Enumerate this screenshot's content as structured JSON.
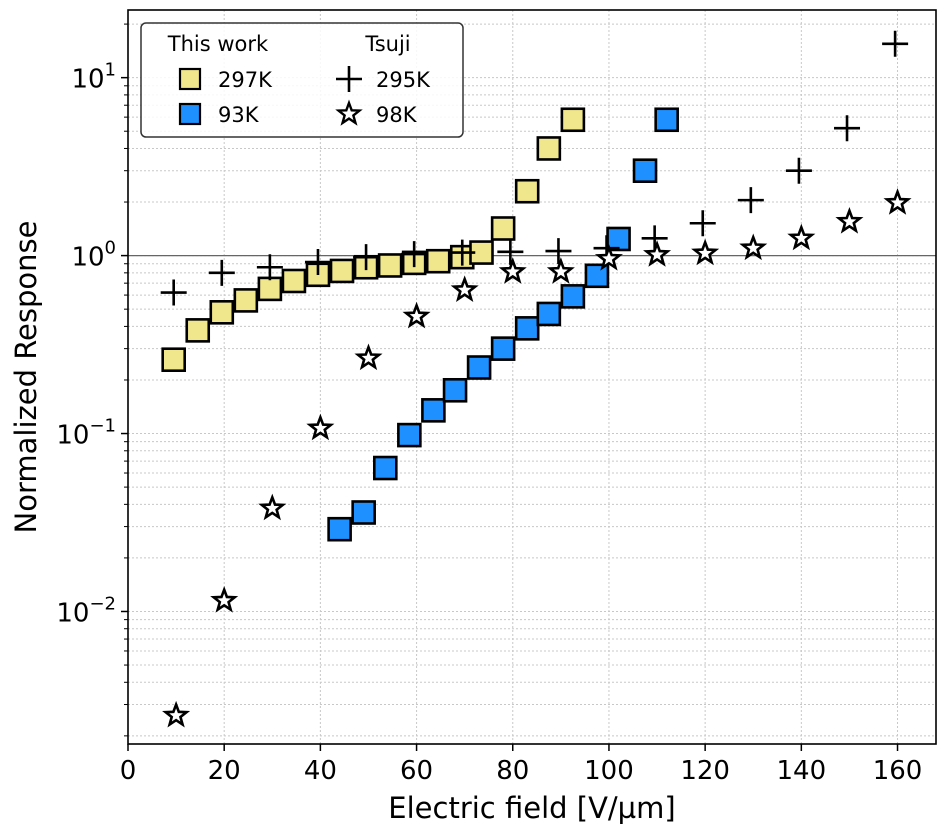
{
  "chart_data": {
    "type": "scatter",
    "xlabel": "Electric field [V/µm]",
    "ylabel": "Normalized Response",
    "xscale": "linear",
    "yscale": "log",
    "xlim": [
      0,
      168
    ],
    "ylim": [
      0.0018,
      24
    ],
    "xticks": [
      0,
      20,
      40,
      60,
      80,
      100,
      120,
      140,
      160
    ],
    "yticks": [
      {
        "value": 0.01,
        "base": "10",
        "exp": "−2"
      },
      {
        "value": 0.1,
        "base": "10",
        "exp": "−1"
      },
      {
        "value": 1,
        "base": "10",
        "exp": "0"
      },
      {
        "value": 10,
        "base": "10",
        "exp": "1"
      }
    ],
    "grid": true,
    "reference_line": 1,
    "legend": {
      "placement": "top-left",
      "groups": [
        {
          "title": "This work",
          "entries": [
            "297K",
            "93K"
          ]
        },
        {
          "title": "Tsuji",
          "entries": [
            "295K",
            "98K"
          ]
        }
      ]
    },
    "series": [
      {
        "name": "297K",
        "group": "This work",
        "marker": "square",
        "color": "#f0e68c",
        "x": [
          9.5,
          14.5,
          19.5,
          24.5,
          29.5,
          34.5,
          39.5,
          44.5,
          49.5,
          54.5,
          59.5,
          64.5,
          69.5,
          73.5,
          78,
          83,
          87.5,
          92.5
        ],
        "y": [
          0.26,
          0.38,
          0.48,
          0.56,
          0.65,
          0.72,
          0.78,
          0.82,
          0.86,
          0.88,
          0.91,
          0.93,
          0.98,
          1.04,
          1.42,
          2.3,
          4.0,
          5.8
        ]
      },
      {
        "name": "93K",
        "group": "This work",
        "marker": "square",
        "color": "#1e90ff",
        "x": [
          44,
          49,
          53.5,
          58.5,
          63.5,
          68,
          73,
          78,
          83,
          87.5,
          92.5,
          97.5,
          102,
          107.5,
          112
        ],
        "y": [
          0.029,
          0.036,
          0.064,
          0.098,
          0.135,
          0.175,
          0.235,
          0.3,
          0.39,
          0.47,
          0.59,
          0.77,
          1.24,
          3.0,
          5.8
        ]
      },
      {
        "name": "295K",
        "group": "Tsuji",
        "marker": "plus",
        "color": "#000000",
        "x": [
          9.5,
          19.5,
          29.5,
          39.5,
          49.5,
          59.5,
          69.5,
          79.5,
          89.5,
          99.5,
          109.5,
          119.5,
          129.5,
          139.5,
          149.5,
          159.5
        ],
        "y": [
          0.62,
          0.8,
          0.86,
          0.92,
          0.98,
          1.02,
          1.04,
          1.05,
          1.06,
          1.1,
          1.25,
          1.52,
          2.05,
          3.0,
          5.2,
          15.5
        ]
      },
      {
        "name": "98K",
        "group": "Tsuji",
        "marker": "star",
        "color": "#ffffff",
        "x": [
          10,
          20,
          30,
          40,
          50,
          60,
          70,
          80,
          90,
          100,
          110,
          120,
          130,
          140,
          150,
          160
        ],
        "y": [
          0.0026,
          0.0115,
          0.038,
          0.107,
          0.265,
          0.455,
          0.64,
          0.81,
          0.81,
          0.96,
          1.01,
          1.03,
          1.1,
          1.25,
          1.55,
          1.98
        ]
      }
    ]
  }
}
